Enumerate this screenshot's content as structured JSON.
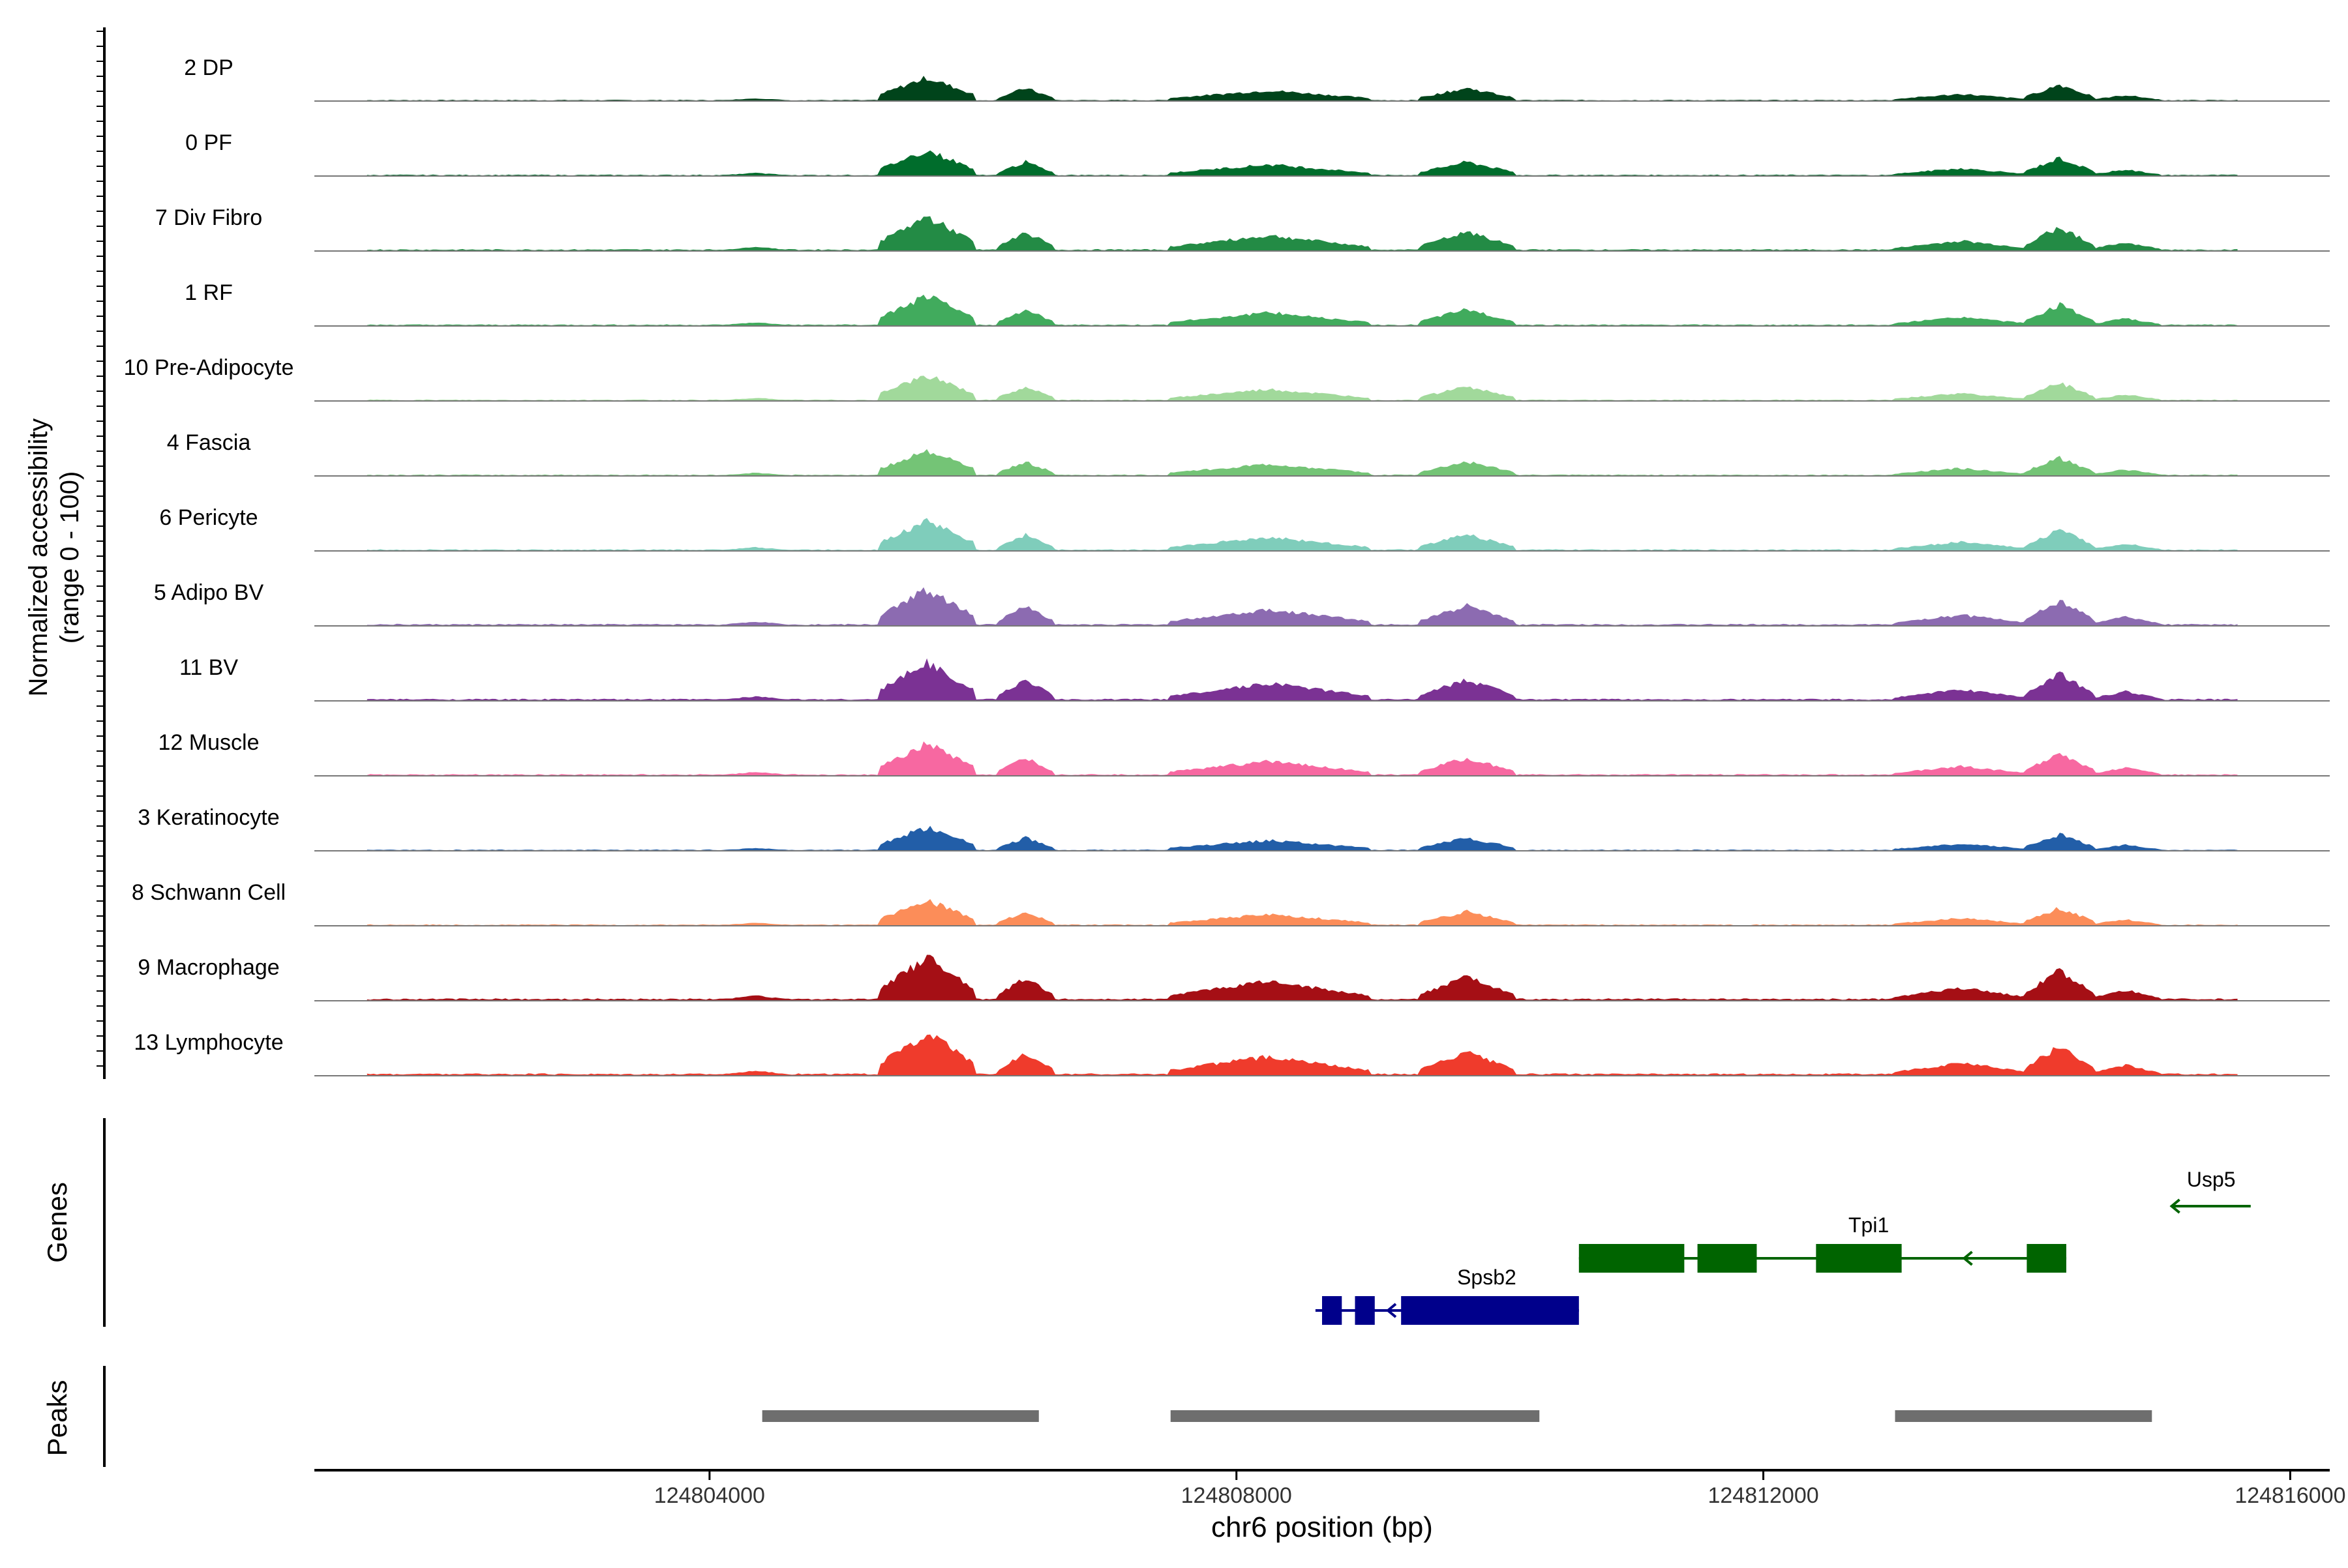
{
  "chart_data": {
    "type": "area",
    "region": {
      "chrom": "chr6",
      "xlim": [
        124801000,
        124816300
      ]
    },
    "ylabel_line1": "Normalized accessibility",
    "ylabel_line2": "(range 0 - 100)",
    "ylim": [
      0,
      100
    ],
    "xlabel": "chr6 position (bp)",
    "xticks": [
      124804000,
      124808000,
      124812000,
      124816000
    ],
    "xtick_labels": [
      "124804000",
      "124808000",
      "124812000",
      "124816000"
    ],
    "peak_regions": [
      {
        "start": 124805300,
        "end": 124806000,
        "height": 1.0
      },
      {
        "start": 124806200,
        "end": 124806600,
        "height": 0.55
      },
      {
        "start": 124804100,
        "end": 124804600,
        "height": 0.12
      },
      {
        "start": 124807500,
        "end": 124809000,
        "height": 0.45
      },
      {
        "start": 124809400,
        "end": 124810100,
        "height": 0.55
      },
      {
        "start": 124813000,
        "end": 124814000,
        "height": 0.3
      },
      {
        "start": 124814000,
        "end": 124814500,
        "height": 0.7
      },
      {
        "start": 124814500,
        "end": 124815000,
        "height": 0.25
      }
    ],
    "tracks": [
      {
        "name": "2 DP",
        "color": "#00441b",
        "scale": 0.55
      },
      {
        "name": "0 PF",
        "color": "#006d2c",
        "scale": 0.6
      },
      {
        "name": "7 Div Fibro",
        "color": "#238b45",
        "scale": 0.8
      },
      {
        "name": "1 RF",
        "color": "#41ab5d",
        "scale": 0.7
      },
      {
        "name": "10 Pre-Adipocyte",
        "color": "#a1d99b",
        "scale": 0.6
      },
      {
        "name": "4 Fascia",
        "color": "#74c476",
        "scale": 0.6
      },
      {
        "name": "6 Pericyte",
        "color": "#7fcdbb",
        "scale": 0.7
      },
      {
        "name": "5 Adipo BV",
        "color": "#8c6bb1",
        "scale": 0.85
      },
      {
        "name": "11 BV",
        "color": "#7b3294",
        "scale": 0.9
      },
      {
        "name": "12 Muscle",
        "color": "#f768a1",
        "scale": 0.75
      },
      {
        "name": "3 Keratinocyte",
        "color": "#225ea8",
        "scale": 0.55
      },
      {
        "name": "8 Schwann Cell",
        "color": "#fc8d59",
        "scale": 0.6
      },
      {
        "name": "9 Macrophage",
        "color": "#a50f15",
        "scale": 1.0
      },
      {
        "name": "13 Lymphocyte",
        "color": "#ef3b2c",
        "scale": 1.0
      }
    ],
    "genes_label": "Genes",
    "peaks_label": "Peaks",
    "genes": [
      {
        "name": "Usp5",
        "strand": "-",
        "color": "#006400",
        "start": 124815100,
        "end": 124815700,
        "row": 0,
        "exons": []
      },
      {
        "name": "Tpi1",
        "strand": "-",
        "color": "#006400",
        "start": 124810600,
        "end": 124814300,
        "row": 1,
        "exons": [
          [
            124810600,
            124811400
          ],
          [
            124811500,
            124811950
          ],
          [
            124812400,
            124813050
          ],
          [
            124814000,
            124814300
          ]
        ]
      },
      {
        "name": "Spsb2",
        "strand": "-",
        "color": "#00008b",
        "start": 124808600,
        "end": 124810600,
        "row": 2,
        "exons": [
          [
            124808650,
            124808800
          ],
          [
            124808900,
            124809050
          ],
          [
            124809250,
            124810600
          ]
        ]
      }
    ],
    "peaks": [
      [
        124804400,
        124806500
      ],
      [
        124807500,
        124810300
      ],
      [
        124813000,
        124814950
      ]
    ],
    "peak_color": "#6e6e6e"
  }
}
